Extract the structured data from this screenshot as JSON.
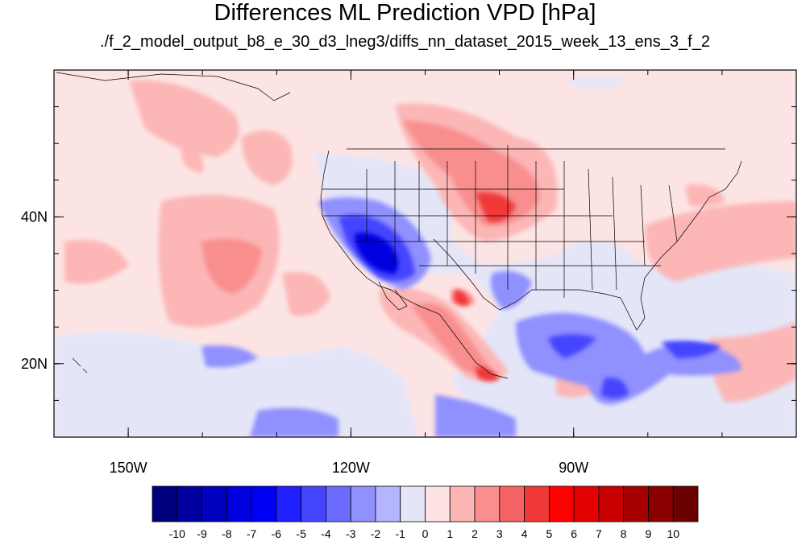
{
  "header": {
    "title": "Differences ML Prediction VPD [hPa]",
    "subtitle": "./f_2_model_output_b8_e_30_d3_lneg3/diffs_nn_dataset_2015_week_13_ens_3_f_2"
  },
  "map": {
    "x_ticks": [
      {
        "label": "150W",
        "lon": -150
      },
      {
        "label": "120W",
        "lon": -120
      },
      {
        "label": "90W",
        "lon": -90
      }
    ],
    "y_ticks": [
      {
        "label": "40N",
        "lat": 40
      },
      {
        "label": "20N",
        "lat": 20
      }
    ],
    "lon_range": [
      -160,
      -60
    ],
    "lat_range": [
      10,
      60
    ],
    "background_color": "#fde4e4"
  },
  "colorbar": {
    "labels": [
      "-10",
      "-9",
      "-8",
      "-7",
      "-6",
      "-5",
      "-4",
      "-3",
      "-2",
      "-1",
      "0",
      "1",
      "2",
      "3",
      "4",
      "5",
      "6",
      "7",
      "8",
      "9",
      "10"
    ],
    "colors": [
      "#00007f",
      "#00009f",
      "#0000bf",
      "#0000df",
      "#0000f5",
      "#1f1fff",
      "#4545ff",
      "#6b6bff",
      "#9090ff",
      "#b4b4ff",
      "#e4e6f8",
      "#fde3e3",
      "#fcb6b6",
      "#f98e8e",
      "#f46464",
      "#f03838",
      "#ff0000",
      "#e30000",
      "#c80000",
      "#a80000",
      "#8a0000",
      "#6b0000"
    ]
  }
}
